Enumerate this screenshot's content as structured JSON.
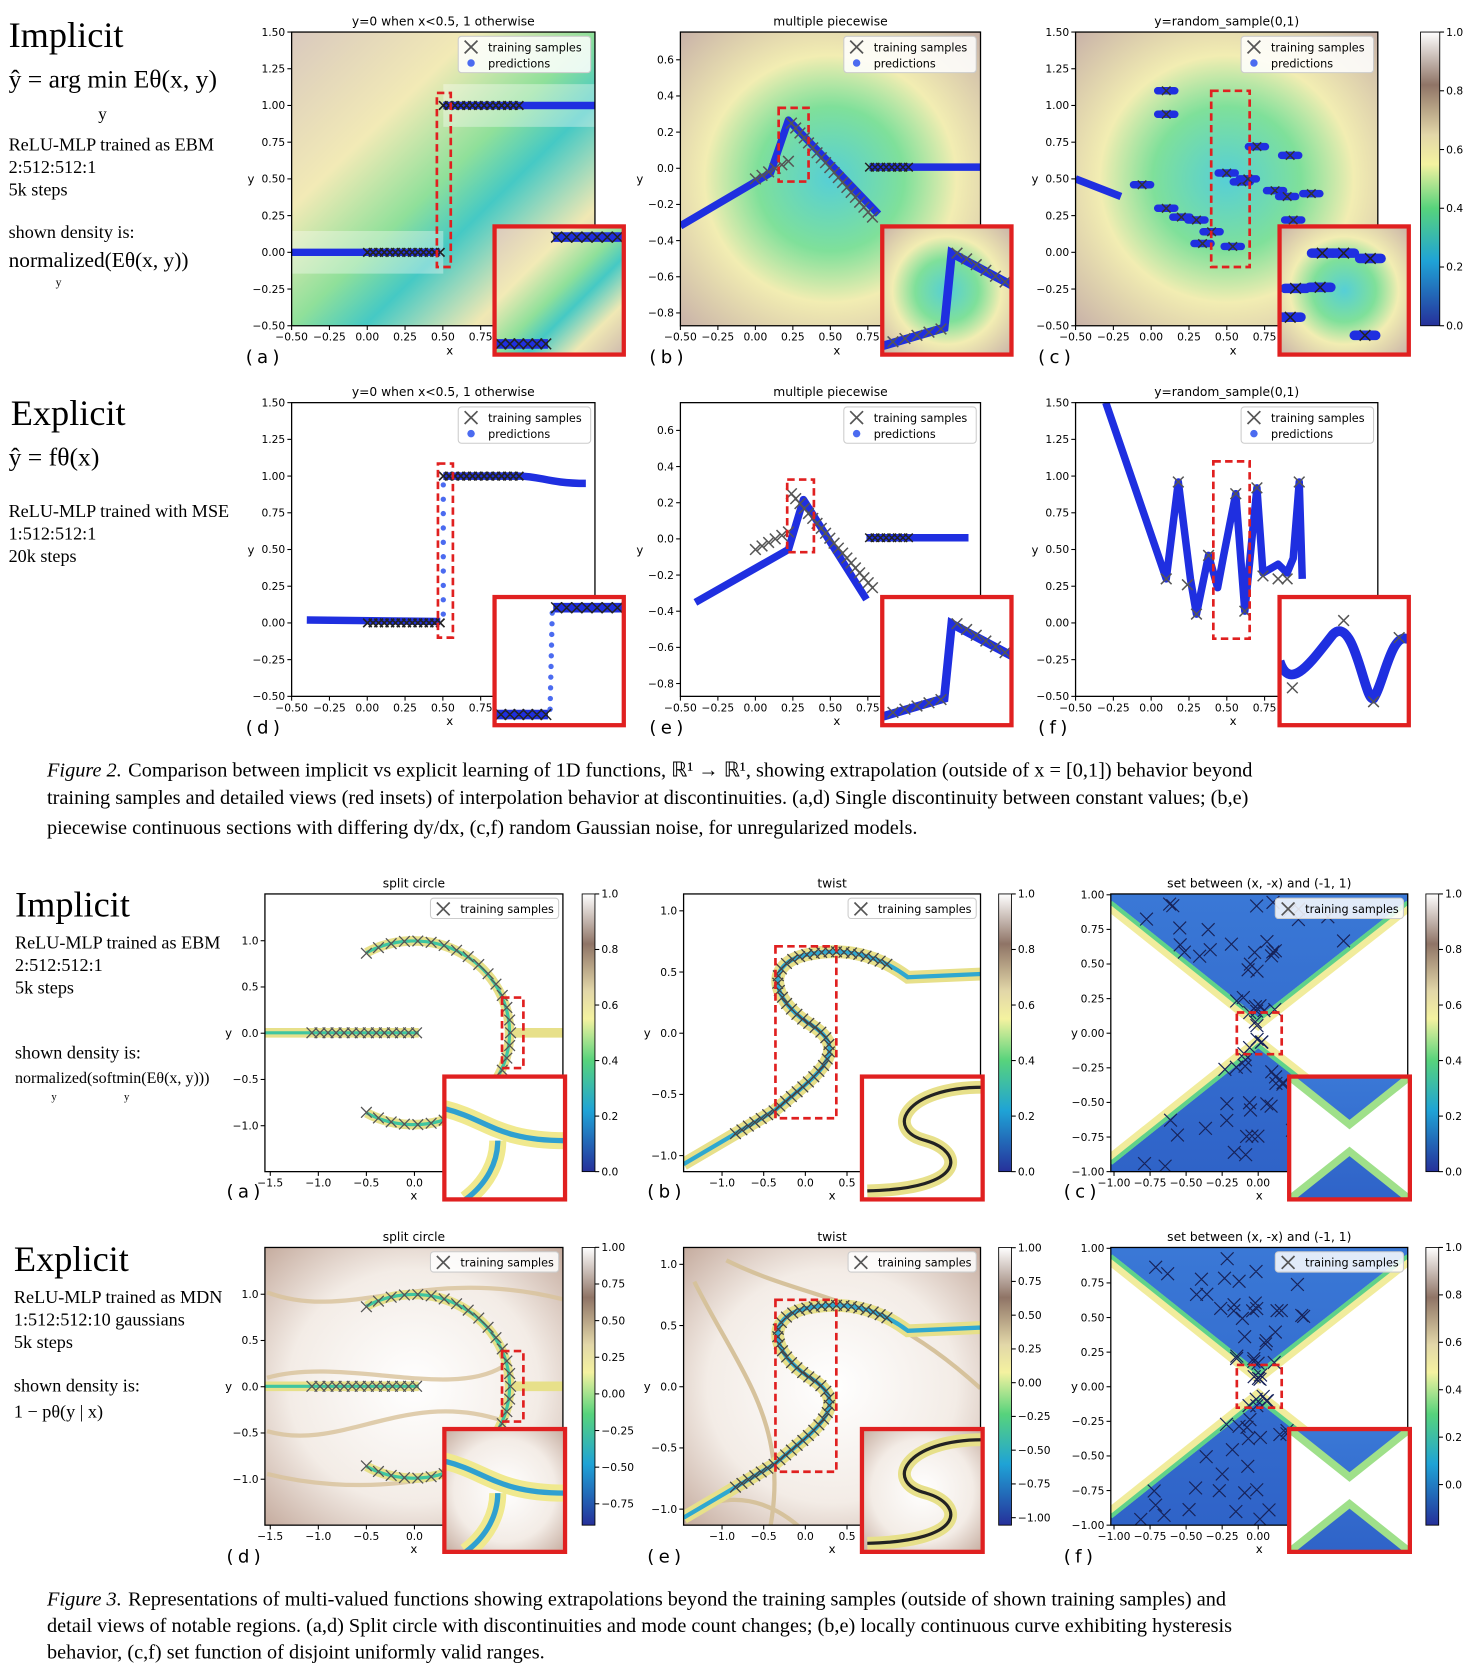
{
  "figure_2": {
    "rows": [
      {
        "heading": "Implicit",
        "lines": [
          "ŷ = arg min Eθ(x, y)",
          "y",
          "ReLU-MLP trained as EBM",
          "2:512:512:1",
          "5k steps",
          "shown density is:",
          "normalized(Eθ(x, y))",
          "y"
        ]
      },
      {
        "heading": "Explicit",
        "lines": [
          "ŷ = fθ(x)",
          "ReLU-MLP trained with MSE",
          "1:512:512:1",
          "20k steps"
        ]
      }
    ],
    "panels": [
      {
        "label": "(a)",
        "title": "y=0 when x<0.5, 1 otherwise",
        "xlabel": "x",
        "ylabel": "y",
        "xticks": [
          "−0.50",
          "−0.25",
          "0.00",
          "0.25",
          "0.50",
          "0.75"
        ],
        "yticks": [
          "−0.50",
          "−0.25",
          "0.00",
          "0.25",
          "0.50",
          "0.75",
          "1.00",
          "1.25",
          "1.50"
        ],
        "legend": [
          "training samples",
          "predictions"
        ]
      },
      {
        "label": "(b)",
        "title": "multiple piecewise",
        "xlabel": "x",
        "ylabel": "y",
        "xticks": [
          "−0.50",
          "−0.25",
          "0.00",
          "0.25",
          "0.50",
          "0.75"
        ],
        "yticks": [
          "−0.8",
          "−0.6",
          "−0.4",
          "−0.2",
          "0.0",
          "0.2",
          "0.4",
          "0.6"
        ],
        "legend": [
          "training samples",
          "predictions"
        ]
      },
      {
        "label": "(c)",
        "title": "y=random_sample(0,1)",
        "xlabel": "x",
        "ylabel": "y",
        "xticks": [
          "−0.50",
          "−0.25",
          "0.00",
          "0.25",
          "0.50",
          "0.75"
        ],
        "yticks": [
          "−0.50",
          "−0.25",
          "0.00",
          "0.25",
          "0.50",
          "0.75",
          "1.00",
          "1.25",
          "1.50"
        ],
        "legend": [
          "training samples",
          "predictions"
        ]
      },
      {
        "label": "(d)",
        "title": "y=0 when x<0.5, 1 otherwise",
        "xlabel": "x",
        "ylabel": "y",
        "xticks": [
          "−0.50",
          "−0.25",
          "0.00",
          "0.25",
          "0.50",
          "0.75"
        ],
        "yticks": [
          "−0.50",
          "−0.25",
          "0.00",
          "0.25",
          "0.50",
          "0.75",
          "1.00",
          "1.25",
          "1.50"
        ],
        "legend": [
          "training samples",
          "predictions"
        ]
      },
      {
        "label": "(e)",
        "title": "multiple piecewise",
        "xlabel": "x",
        "ylabel": "y",
        "xticks": [
          "−0.50",
          "−0.25",
          "0.00",
          "0.25",
          "0.50",
          "0.75"
        ],
        "yticks": [
          "−0.8",
          "−0.6",
          "−0.4",
          "−0.2",
          "0.0",
          "0.2",
          "0.4",
          "0.6"
        ],
        "legend": [
          "training samples",
          "predictions"
        ]
      },
      {
        "label": "(f)",
        "title": "y=random_sample(0,1)",
        "xlabel": "x",
        "ylabel": "y",
        "xticks": [
          "−0.50",
          "−0.25",
          "0.00",
          "0.25",
          "0.50",
          "0.75"
        ],
        "yticks": [
          "−0.50",
          "−0.25",
          "0.00",
          "0.25",
          "0.50",
          "0.75",
          "1.00",
          "1.25",
          "1.50"
        ],
        "legend": [
          "training samples",
          "predictions"
        ]
      }
    ],
    "colorbar_ticks": [
      "0.0",
      "0.2",
      "0.4",
      "0.6",
      "0.8",
      "1.0"
    ],
    "caption": {
      "label": "Figure 2.",
      "lines": [
        "Comparison between implicit vs explicit learning of 1D functions, ℝ¹ → ℝ¹, showing extrapolation (outside of x = [0,1]) behavior beyond",
        "training samples and detailed views (red insets) of interpolation behavior at discontinuities.  (a,d) Single discontinuity between constant values; (b,e)",
        "piecewise continuous sections with differing dy/dx, (c,f) random Gaussian noise, for unregularized models."
      ]
    }
  },
  "figure_3": {
    "rows": [
      {
        "heading": "Implicit",
        "lines": [
          "ReLU-MLP trained as EBM",
          "2:512:512:1",
          "5k steps",
          "shown density is:",
          "normalized(softmin(Eθ(x, y)))",
          "y",
          "y"
        ]
      },
      {
        "heading": "Explicit",
        "lines": [
          "ReLU-MLP trained as MDN",
          "1:512:512:10 gaussians",
          "5k steps",
          "shown density is:",
          "1 − pθ(y | x)"
        ]
      }
    ],
    "panels": [
      {
        "label": "(a)",
        "title": "split circle",
        "xlabel": "x",
        "ylabel": "y",
        "xticks": [
          "−1.5",
          "−1.0",
          "−0.5",
          "0.0"
        ],
        "yticks": [
          "−1.0",
          "−0.5",
          "0.0",
          "0.5",
          "1.0"
        ],
        "legend": [
          "training samples"
        ],
        "colorbar_ticks": [
          "0.0",
          "0.2",
          "0.4",
          "0.6",
          "0.8",
          "1.0"
        ]
      },
      {
        "label": "(b)",
        "title": "twist",
        "xlabel": "x",
        "ylabel": "y",
        "xticks": [
          "−1.0",
          "−0.5",
          "0.0",
          "0.5"
        ],
        "yticks": [
          "−1.0",
          "−0.5",
          "0.0",
          "0.5",
          "1.0"
        ],
        "legend": [
          "training samples"
        ],
        "colorbar_ticks": [
          "0.0",
          "0.2",
          "0.4",
          "0.6",
          "0.8",
          "1.0"
        ]
      },
      {
        "label": "(c)",
        "title": "set between (x, -x) and (-1, 1)",
        "xlabel": "x",
        "ylabel": "y",
        "xticks": [
          "−1.00",
          "−0.75",
          "−0.50",
          "−0.25",
          "0.00"
        ],
        "yticks": [
          "−1.00",
          "−0.75",
          "−0.50",
          "−0.25",
          "0.00",
          "0.25",
          "0.50",
          "0.75",
          "1.00"
        ],
        "legend": [
          "training samples"
        ],
        "colorbar_ticks": [
          "0.0",
          "0.2",
          "0.4",
          "0.6",
          "0.8",
          "1.0"
        ]
      },
      {
        "label": "(d)",
        "title": "split circle",
        "xlabel": "x",
        "ylabel": "y",
        "xticks": [
          "−1.5",
          "−1.0",
          "−0.5",
          "0.0"
        ],
        "yticks": [
          "−1.0",
          "−0.5",
          "0.0",
          "0.5",
          "1.0"
        ],
        "legend": [
          "training samples"
        ],
        "colorbar_ticks": [
          "−0.75",
          "−0.50",
          "−0.25",
          "0.00",
          "0.25",
          "0.50",
          "0.75",
          "1.00"
        ]
      },
      {
        "label": "(e)",
        "title": "twist",
        "xlabel": "x",
        "ylabel": "y",
        "xticks": [
          "−1.0",
          "−0.5",
          "0.0",
          "0.5"
        ],
        "yticks": [
          "−1.0",
          "−0.5",
          "0.0",
          "0.5",
          "1.0"
        ],
        "legend": [
          "training samples"
        ],
        "colorbar_ticks": [
          "−1.00",
          "−0.75",
          "−0.50",
          "−0.25",
          "0.00",
          "0.25",
          "0.50",
          "0.75",
          "1.00"
        ]
      },
      {
        "label": "(f)",
        "title": "set between (x, -x) and (-1, 1)",
        "xlabel": "x",
        "ylabel": "y",
        "xticks": [
          "−1.00",
          "−0.75",
          "−0.50",
          "−0.25",
          "0.00"
        ],
        "yticks": [
          "−1.00",
          "−0.75",
          "−0.50",
          "−0.25",
          "0.00",
          "0.25",
          "0.50",
          "0.75",
          "1.00"
        ],
        "legend": [
          "training samples"
        ],
        "colorbar_ticks": [
          "0.0",
          "0.2",
          "0.4",
          "0.6",
          "0.8",
          "1.0"
        ]
      }
    ],
    "caption": {
      "label": "Figure 3.",
      "lines": [
        "Representations of multi-valued functions showing extrapolations beyond the training samples (outside of shown training samples) and",
        "detail views of notable regions.  (a,d) Split circle with discontinuities and mode count changes; (b,e) locally continuous curve exhibiting hysteresis",
        "behavior, (c,f) set function of disjoint uniformly valid ranges."
      ]
    }
  }
}
